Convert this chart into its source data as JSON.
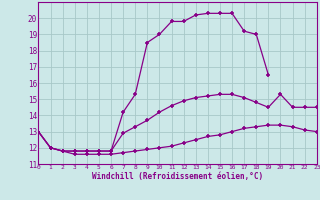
{
  "xlabel": "Windchill (Refroidissement éolien,°C)",
  "background_color": "#cce8e8",
  "line_color": "#880088",
  "grid_color": "#b8d8d8",
  "xlim": [
    0,
    23
  ],
  "ylim": [
    11,
    21
  ],
  "yticks": [
    11,
    12,
    13,
    14,
    15,
    16,
    17,
    18,
    19,
    20
  ],
  "xticks": [
    0,
    1,
    2,
    3,
    4,
    5,
    6,
    7,
    8,
    9,
    10,
    11,
    12,
    13,
    14,
    15,
    16,
    17,
    18,
    19,
    20,
    21,
    22,
    23
  ],
  "line1_x": [
    0,
    1,
    2,
    3,
    4,
    5,
    6,
    7,
    8,
    9,
    10,
    11,
    12,
    13,
    14,
    15,
    16,
    17,
    18,
    19,
    20,
    21,
    22,
    23
  ],
  "line1_y": [
    13.0,
    12.0,
    11.8,
    11.6,
    11.6,
    11.6,
    11.6,
    11.7,
    11.8,
    11.9,
    12.0,
    12.1,
    12.3,
    12.5,
    12.7,
    12.8,
    13.0,
    13.2,
    13.3,
    13.4,
    13.4,
    13.3,
    13.1,
    13.0
  ],
  "line2_x": [
    0,
    1,
    2,
    3,
    4,
    5,
    6,
    7,
    8,
    9,
    10,
    11,
    12,
    13,
    14,
    15,
    16,
    17,
    18,
    19,
    20,
    21,
    22,
    23
  ],
  "line2_y": [
    13.0,
    12.0,
    11.8,
    11.8,
    11.8,
    11.8,
    11.8,
    12.9,
    13.3,
    13.7,
    14.2,
    14.6,
    14.9,
    15.1,
    15.2,
    15.3,
    15.3,
    15.1,
    14.8,
    14.5,
    15.3,
    14.5,
    14.5,
    14.5
  ],
  "line3_x": [
    0,
    1,
    2,
    3,
    4,
    5,
    6,
    7,
    8,
    9,
    10,
    11,
    12,
    13,
    14,
    15,
    16,
    17,
    18,
    19
  ],
  "line3_y": [
    13.0,
    12.0,
    11.8,
    11.8,
    11.8,
    11.8,
    11.8,
    14.2,
    15.3,
    18.5,
    19.0,
    19.8,
    19.8,
    20.2,
    20.3,
    20.3,
    20.3,
    19.2,
    19.0,
    16.5
  ]
}
